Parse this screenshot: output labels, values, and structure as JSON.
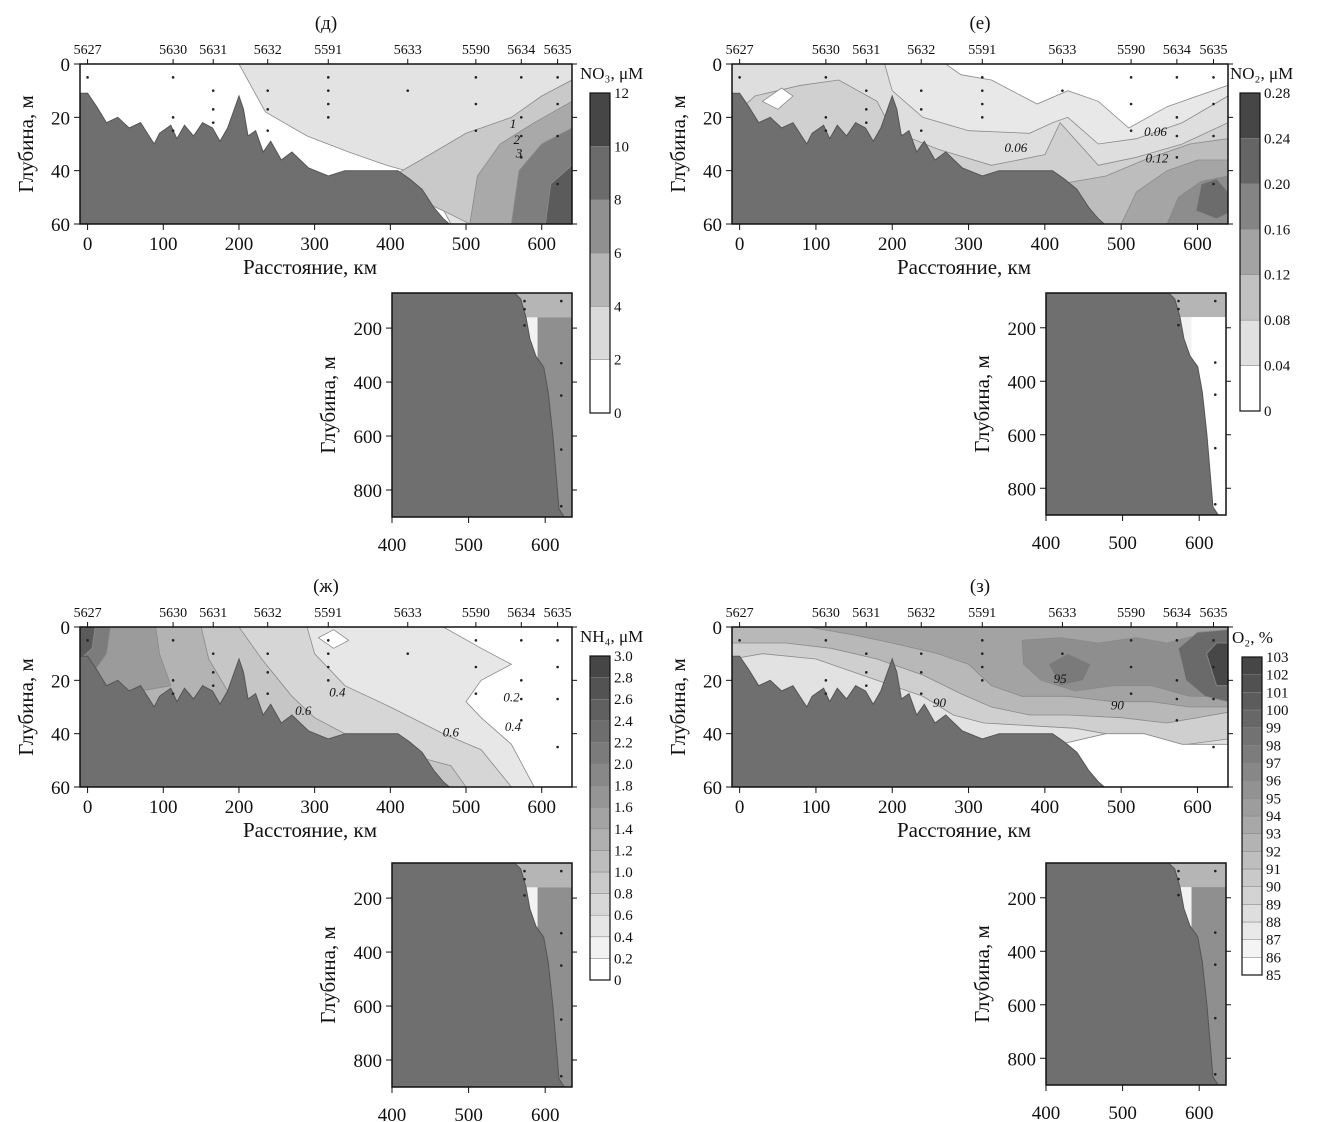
{
  "figure": {
    "station_labels": [
      "5627",
      "5630",
      "5631",
      "5632",
      "5591",
      "5633",
      "5590",
      "5634",
      "5635"
    ],
    "station_km": [
      0,
      113,
      166,
      238,
      318,
      423,
      513,
      573,
      621
    ],
    "depth_axis_label": "Глубина, м",
    "distance_axis_label": "Расстояние, км"
  },
  "chart_data": [
    {
      "type": "heatmap",
      "panel": "(д)",
      "title": "(д)",
      "colorbar_title": "NO₃, μM",
      "xlabel": "Расстояние, км",
      "ylabel": "Глубина, м",
      "xlim": [
        -10,
        640
      ],
      "ylim": [
        60,
        0
      ],
      "x_ticks": [
        0,
        100,
        200,
        300,
        400,
        500,
        600
      ],
      "y_ticks": [
        0,
        20,
        40,
        60
      ],
      "colorbar_ticks": [
        "0",
        "2",
        "4",
        "6",
        "8",
        "10",
        "12"
      ],
      "contour_labels": [
        {
          "text": "1",
          "x": 562,
          "y": 24
        },
        {
          "text": "2",
          "x": 567,
          "y": 30
        },
        {
          "text": "3",
          "x": 570,
          "y": 35
        }
      ],
      "inset": {
        "xlim": [
          400,
          635
        ],
        "ylim": [
          900,
          70
        ],
        "x_ticks": [
          400,
          500,
          600
        ],
        "y_ticks": [
          200,
          400,
          600,
          800
        ],
        "ylabel": "Глубина, м"
      }
    },
    {
      "type": "heatmap",
      "panel": "(е)",
      "title": "(е)",
      "colorbar_title": "NO₂, μM",
      "xlabel": "Расстояние, км",
      "ylabel": "Глубина, м",
      "xlim": [
        -10,
        640
      ],
      "ylim": [
        60,
        0
      ],
      "x_ticks": [
        0,
        100,
        200,
        300,
        400,
        500,
        600
      ],
      "y_ticks": [
        0,
        20,
        40,
        60
      ],
      "colorbar_ticks": [
        "0",
        "0.04",
        "0.08",
        "0.12",
        "0.16",
        "0.20",
        "0.24",
        "0.28"
      ],
      "contour_labels": [
        {
          "text": "0.06",
          "x": 362,
          "y": 33
        },
        {
          "text": "0.06",
          "x": 545,
          "y": 27
        },
        {
          "text": "0.12",
          "x": 547,
          "y": 37
        }
      ],
      "inset": {
        "xlim": [
          400,
          635
        ],
        "ylim": [
          900,
          70
        ],
        "x_ticks": [
          400,
          500,
          600
        ],
        "y_ticks": [
          200,
          400,
          600,
          800
        ],
        "ylabel": "Глубина, м"
      }
    },
    {
      "type": "heatmap",
      "panel": "(ж)",
      "title": "(ж)",
      "colorbar_title": "NH₄, μM",
      "xlabel": "Расстояние, км",
      "ylabel": "Глубина, м",
      "xlim": [
        -10,
        640
      ],
      "ylim": [
        60,
        0
      ],
      "x_ticks": [
        0,
        100,
        200,
        300,
        400,
        500,
        600
      ],
      "y_ticks": [
        0,
        20,
        40,
        60
      ],
      "colorbar_ticks": [
        "0",
        "0.2",
        "0.4",
        "0.6",
        "0.8",
        "1.0",
        "1.2",
        "1.4",
        "1.6",
        "1.8",
        "2.0",
        "2.2",
        "2.4",
        "2.6",
        "2.8",
        "3.0"
      ],
      "contour_labels": [
        {
          "text": "0.4",
          "x": 330,
          "y": 26
        },
        {
          "text": "0.6",
          "x": 285,
          "y": 33
        },
        {
          "text": "0.6",
          "x": 480,
          "y": 41
        },
        {
          "text": "0.2",
          "x": 560,
          "y": 28
        },
        {
          "text": "0.4",
          "x": 562,
          "y": 39
        }
      ],
      "inset": {
        "xlim": [
          400,
          635
        ],
        "ylim": [
          900,
          70
        ],
        "x_ticks": [
          400,
          500,
          600
        ],
        "y_ticks": [
          200,
          400,
          600,
          800
        ],
        "ylabel": "Глубина, м"
      }
    },
    {
      "type": "heatmap",
      "panel": "(з)",
      "title": "(з)",
      "colorbar_title": "O₂, %",
      "xlabel": "Расстояние, км",
      "ylabel": "Глубина, м",
      "xlim": [
        -10,
        640
      ],
      "ylim": [
        60,
        0
      ],
      "x_ticks": [
        0,
        100,
        200,
        300,
        400,
        500,
        600
      ],
      "y_ticks": [
        0,
        20,
        40,
        60
      ],
      "colorbar_ticks": [
        "85",
        "86",
        "87",
        "88",
        "89",
        "90",
        "91",
        "92",
        "93",
        "94",
        "95",
        "96",
        "97",
        "98",
        "99",
        "100",
        "101",
        "102",
        "103"
      ],
      "contour_labels": [
        {
          "text": "90",
          "x": 262,
          "y": 30
        },
        {
          "text": "95",
          "x": 420,
          "y": 21
        },
        {
          "text": "90",
          "x": 495,
          "y": 31
        }
      ],
      "inset": {
        "xlim": [
          400,
          635
        ],
        "ylim": [
          900,
          70
        ],
        "x_ticks": [
          400,
          500,
          600
        ],
        "y_ticks": [
          200,
          400,
          600,
          800
        ],
        "ylabel": "Глубина, м"
      }
    }
  ]
}
